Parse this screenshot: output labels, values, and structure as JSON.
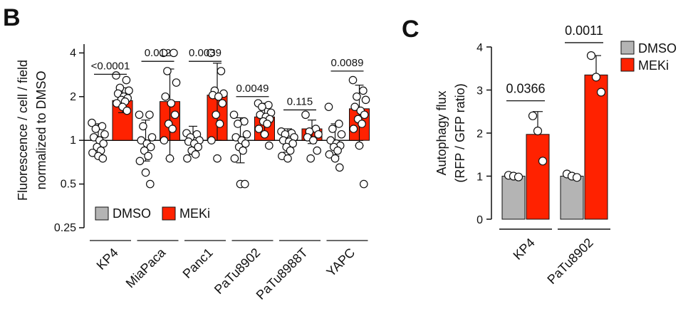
{
  "panels": {
    "b_letter": "B",
    "c_letter": "C"
  },
  "colors": {
    "dmso": "#b4b4b4",
    "meki": "#ff2200",
    "axis": "#111111"
  },
  "chart_data": [
    {
      "panel": "B",
      "type": "bar",
      "yscale": "log2",
      "ylabel_line1": "Fluorescence / cell / field",
      "ylabel_line2": "normalized to DMSO",
      "ylim": [
        0.25,
        4.6
      ],
      "yticks": [
        0.25,
        0.5,
        1,
        2,
        4
      ],
      "ytick_labels": [
        "0.25",
        "0.5",
        "1",
        "2",
        "4"
      ],
      "reference_line": 1,
      "categories": [
        "KP4",
        "MiaPaca",
        "Panc1",
        "PaTu8902",
        "PaTu8988T",
        "YAPC"
      ],
      "series": [
        {
          "name": "DMSO",
          "means": [
            1.0,
            1.0,
            1.0,
            1.0,
            1.0,
            1.0
          ],
          "error_low": [
            0.78,
            0.72,
            0.8,
            0.7,
            0.83,
            0.78
          ],
          "error_high": [
            1.3,
            1.38,
            1.25,
            1.43,
            1.2,
            1.3
          ],
          "points": [
            [
              1.32,
              1.25,
              1.2,
              1.1,
              1.05,
              1.0,
              0.95,
              0.9,
              0.85,
              0.82,
              0.78,
              0.75
            ],
            [
              1.5,
              1.5,
              1.25,
              1.05,
              1.0,
              0.95,
              0.9,
              0.85,
              0.78,
              0.72,
              0.6,
              0.5
            ],
            [
              1.12,
              1.1,
              1.05,
              1.0,
              0.98,
              0.95,
              0.9,
              0.85,
              0.8,
              0.75
            ],
            [
              1.5,
              1.35,
              1.3,
              1.1,
              1.05,
              1.0,
              0.95,
              0.9,
              0.85,
              0.75,
              0.5,
              0.5
            ],
            [
              1.15,
              1.12,
              1.1,
              1.05,
              1.0,
              0.98,
              0.95,
              0.9,
              0.85,
              0.78,
              0.75
            ],
            [
              1.7,
              1.3,
              1.2,
              1.1,
              1.0,
              0.95,
              0.92,
              0.9,
              0.85,
              0.8,
              0.75,
              0.65
            ]
          ]
        },
        {
          "name": "MEKi",
          "means": [
            1.88,
            1.85,
            2.05,
            1.45,
            1.2,
            1.65
          ],
          "error_low": [
            1.55,
            0.75,
            1.0,
            1.1,
            0.95,
            0.92
          ],
          "error_high": [
            2.3,
            3.1,
            3.4,
            1.8,
            1.38,
            2.4
          ],
          "points": [
            [
              2.8,
              2.6,
              2.3,
              2.2,
              2.1,
              2.0,
              1.95,
              1.9,
              1.85,
              1.8,
              1.7,
              1.6
            ],
            [
              4.0,
              4.0,
              3.0,
              2.5,
              2.0,
              1.8,
              1.5,
              1.3,
              1.2,
              1.0,
              0.75
            ],
            [
              4.0,
              3.0,
              2.2,
              2.1,
              2.05,
              2.0,
              1.8,
              1.5,
              1.3,
              1.0,
              0.75
            ],
            [
              1.8,
              1.75,
              1.7,
              1.55,
              1.5,
              1.45,
              1.4,
              1.35,
              1.3,
              1.2,
              1.1,
              0.92
            ],
            [
              1.5,
              1.2,
              1.15,
              1.1,
              1.05,
              1.0,
              0.85,
              0.75
            ],
            [
              2.6,
              2.2,
              2.0,
              1.9,
              1.7,
              1.6,
              1.5,
              1.4,
              1.3,
              1.2,
              0.92,
              0.5
            ]
          ]
        }
      ],
      "pvalues": [
        "<0.0001",
        "0.012",
        "0.0039",
        "0.0049",
        "0.115",
        "0.0089"
      ],
      "pvalue_bar_y": [
        2.85,
        3.5,
        3.5,
        2.0,
        1.62,
        3.0
      ],
      "legend": [
        "DMSO",
        "MEKi"
      ]
    },
    {
      "panel": "C",
      "type": "bar",
      "ylabel_line1": "Autophagy flux",
      "ylabel_line2": "(RFP / GFP ratio)",
      "ylim": [
        0,
        4
      ],
      "yticks": [
        0,
        1,
        2,
        3,
        4
      ],
      "ytick_labels": [
        "0",
        "1",
        "2",
        "3",
        "4"
      ],
      "categories": [
        "KP4",
        "PaTu8902"
      ],
      "series": [
        {
          "name": "DMSO",
          "means": [
            1.0,
            1.0
          ],
          "error": [
            0.03,
            0.04
          ],
          "points": [
            [
              1.02,
              1.0,
              0.98
            ],
            [
              1.05,
              1.0,
              0.97
            ]
          ]
        },
        {
          "name": "MEKi",
          "means": [
            1.97,
            3.35
          ],
          "error": [
            0.53,
            0.45
          ],
          "points": [
            [
              2.4,
              2.05,
              1.35
            ],
            [
              3.8,
              3.3,
              2.95
            ]
          ]
        }
      ],
      "pvalues": [
        "0.0366",
        "0.0011"
      ],
      "pvalue_bar_y": [
        2.75,
        4.1
      ],
      "legend": [
        "DMSO",
        "MEKi"
      ]
    }
  ]
}
